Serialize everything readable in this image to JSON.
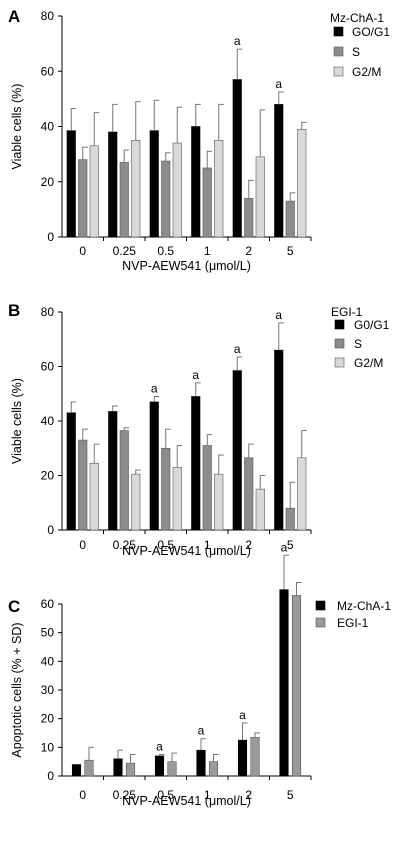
{
  "chart_data": [
    {
      "type": "bar",
      "panel": "A",
      "categories": [
        "0",
        "0.25",
        "0.5",
        "1",
        "2",
        "5"
      ],
      "xlabel": "NVP-AEW541 (μmol/L)",
      "ylabel": "Viable cells (%)",
      "ylim": [
        0,
        80
      ],
      "yticks": [
        0,
        20,
        40,
        60,
        80
      ],
      "legend_title": "Mz-ChA-1",
      "legend_position": "top-right",
      "series": [
        {
          "name": "GO/G1",
          "color": "#000000",
          "values": [
            38.5,
            38,
            38.5,
            40,
            57,
            48
          ],
          "errors": [
            8,
            10,
            11,
            8,
            11,
            4.5
          ],
          "annotations": [
            "",
            "",
            "",
            "",
            "a",
            "a"
          ]
        },
        {
          "name": "S",
          "color": "#8c8c8c",
          "values": [
            28,
            27,
            27.5,
            25,
            14,
            13
          ],
          "errors": [
            4.5,
            4.5,
            3,
            6,
            6.5,
            3
          ],
          "annotations": [
            "",
            "",
            "",
            "",
            "",
            ""
          ]
        },
        {
          "name": "G2/M",
          "color": "#d9d9d9",
          "values": [
            33,
            35,
            34,
            35,
            29,
            39
          ],
          "errors": [
            12,
            14,
            13,
            13,
            17,
            2.5
          ],
          "annotations": [
            "",
            "",
            "",
            "",
            "",
            ""
          ]
        }
      ]
    },
    {
      "type": "bar",
      "panel": "B",
      "categories": [
        "0",
        "0.25",
        "0.5",
        "1",
        "2",
        "5"
      ],
      "xlabel": "NVP-AEW541 (μmol/L)",
      "ylabel": "Viable cells (%)",
      "ylim": [
        0,
        80
      ],
      "yticks": [
        0,
        20,
        40,
        60,
        80
      ],
      "legend_title": "EGI-1",
      "legend_position": "top-right",
      "series": [
        {
          "name": "G0/G1",
          "color": "#000000",
          "values": [
            43,
            43.5,
            47,
            49,
            58.5,
            66
          ],
          "errors": [
            4,
            2,
            2,
            5,
            5,
            10
          ],
          "annotations": [
            "",
            "",
            "a",
            "a",
            "a",
            "a"
          ]
        },
        {
          "name": "S",
          "color": "#8c8c8c",
          "values": [
            33,
            36.5,
            30,
            31,
            26.5,
            8
          ],
          "errors": [
            4,
            1,
            7,
            4,
            5,
            9.5
          ],
          "annotations": [
            "",
            "",
            "",
            "",
            "",
            ""
          ]
        },
        {
          "name": "G2/M",
          "color": "#d9d9d9",
          "values": [
            24.5,
            20.5,
            23,
            20.5,
            15,
            26.5
          ],
          "errors": [
            7,
            1.5,
            8,
            7,
            5,
            10
          ],
          "annotations": [
            "",
            "",
            "",
            "",
            "",
            ""
          ]
        }
      ]
    },
    {
      "type": "bar",
      "panel": "C",
      "categories": [
        "0",
        "0.25",
        "0.5",
        "1",
        "2",
        "5"
      ],
      "xlabel": "NVP-AEW541 (μmol/L)",
      "ylabel": "Apoptotic cells (% + SD)",
      "ylim": [
        0,
        60
      ],
      "yticks": [
        0,
        10,
        20,
        30,
        40,
        50,
        60
      ],
      "legend_title": "",
      "legend_position": "top-right",
      "series": [
        {
          "name": "Mz-ChA-1",
          "color": "#000000",
          "values": [
            4,
            6,
            7,
            9,
            12.5,
            65
          ],
          "errors": [
            0,
            3,
            0.5,
            4,
            6,
            12
          ],
          "annotations": [
            "",
            "",
            "a",
            "a",
            "a",
            "a"
          ]
        },
        {
          "name": "EGI-1",
          "color": "#9a9a9a",
          "values": [
            5.5,
            4.5,
            5,
            5,
            13.5,
            63
          ],
          "errors": [
            4.5,
            3,
            3,
            2.5,
            1.5,
            4.5
          ],
          "annotations": [
            "",
            "",
            "",
            "",
            "",
            ""
          ]
        }
      ]
    }
  ]
}
